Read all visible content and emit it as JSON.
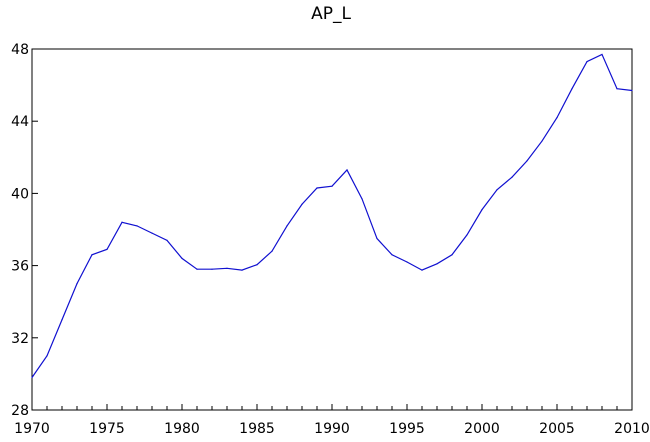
{
  "chart_data": {
    "type": "line",
    "title": "AP_L",
    "xlabel": "",
    "ylabel": "",
    "xlim": [
      1970,
      2010
    ],
    "ylim": [
      28,
      48
    ],
    "x_ticks": [
      1970,
      1975,
      1980,
      1985,
      1990,
      1995,
      2000,
      2005,
      2010
    ],
    "x_tick_labels": [
      "1970",
      "1975",
      "1980",
      "1985",
      "1990",
      "1995",
      "2000",
      "2005",
      "2010"
    ],
    "y_ticks": [
      28,
      32,
      36,
      40,
      44,
      48
    ],
    "y_tick_labels": [
      "28",
      "32",
      "36",
      "40",
      "44",
      "48"
    ],
    "grid": false,
    "legend": "none",
    "series_color": "#1010d0",
    "x": [
      1970,
      1971,
      1972,
      1973,
      1974,
      1975,
      1976,
      1977,
      1978,
      1979,
      1980,
      1981,
      1982,
      1983,
      1984,
      1985,
      1986,
      1987,
      1988,
      1989,
      1990,
      1991,
      1992,
      1993,
      1994,
      1995,
      1996,
      1997,
      1998,
      1999,
      2000,
      2001,
      2002,
      2003,
      2004,
      2005,
      2006,
      2007,
      2008,
      2009,
      2010
    ],
    "series": [
      {
        "values": [
          29.8,
          31.0,
          33.0,
          35.0,
          36.6,
          36.9,
          38.4,
          38.2,
          37.8,
          37.4,
          36.4,
          35.8,
          35.8,
          35.85,
          35.75,
          36.05,
          36.8,
          38.2,
          39.4,
          40.3,
          40.4,
          41.3,
          39.7,
          37.5,
          36.6,
          36.2,
          35.75,
          36.1,
          36.6,
          37.7,
          39.1,
          40.2,
          40.9,
          41.8,
          42.9,
          44.2,
          45.8,
          47.3,
          47.7,
          45.8,
          45.7
        ]
      }
    ]
  }
}
